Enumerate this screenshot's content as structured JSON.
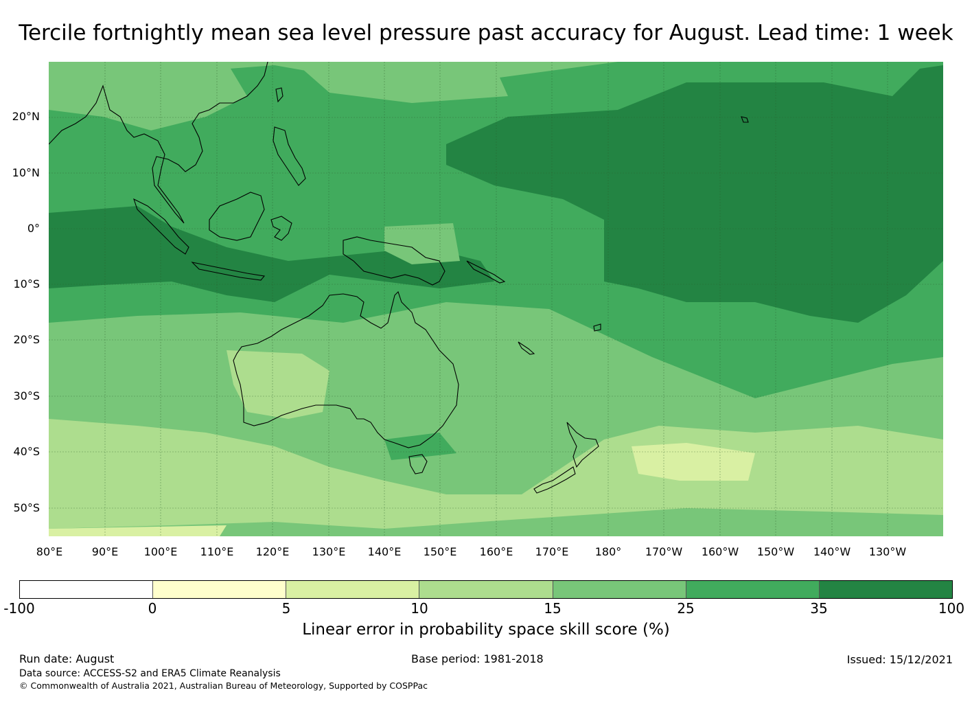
{
  "title": "Tercile fortnightly mean sea level pressure past accuracy for August. Lead time: 1 week",
  "map": {
    "lat_labels": [
      "20°N",
      "10°N",
      "0°",
      "10°S",
      "20°S",
      "30°S",
      "40°S",
      "50°S"
    ],
    "lon_labels": [
      "80°E",
      "90°E",
      "100°E",
      "110°E",
      "120°E",
      "130°E",
      "140°E",
      "150°E",
      "160°E",
      "170°E",
      "180°",
      "170°W",
      "160°W",
      "150°W",
      "140°W",
      "130°W"
    ]
  },
  "colorbar": {
    "ticks": [
      "-100",
      "0",
      "5",
      "10",
      "15",
      "25",
      "35",
      "100"
    ],
    "colors": [
      "#ffffff",
      "#ffffcc",
      "#d9f0a3",
      "#addd8e",
      "#78c679",
      "#41ab5d",
      "#238443"
    ],
    "label": "Linear error in probability space skill score (%)"
  },
  "footer": {
    "run_date": "Run date: August",
    "base_period": "Base period: 1981-2018",
    "issued": "Issued: 15/12/2021",
    "data_source": "Data source: ACCESS-S2 and ERA5 Climate Reanalysis",
    "copyright": "© Commonwealth of Australia 2021, Australian Bureau of Meteorology, Supported by COSPPac"
  }
}
